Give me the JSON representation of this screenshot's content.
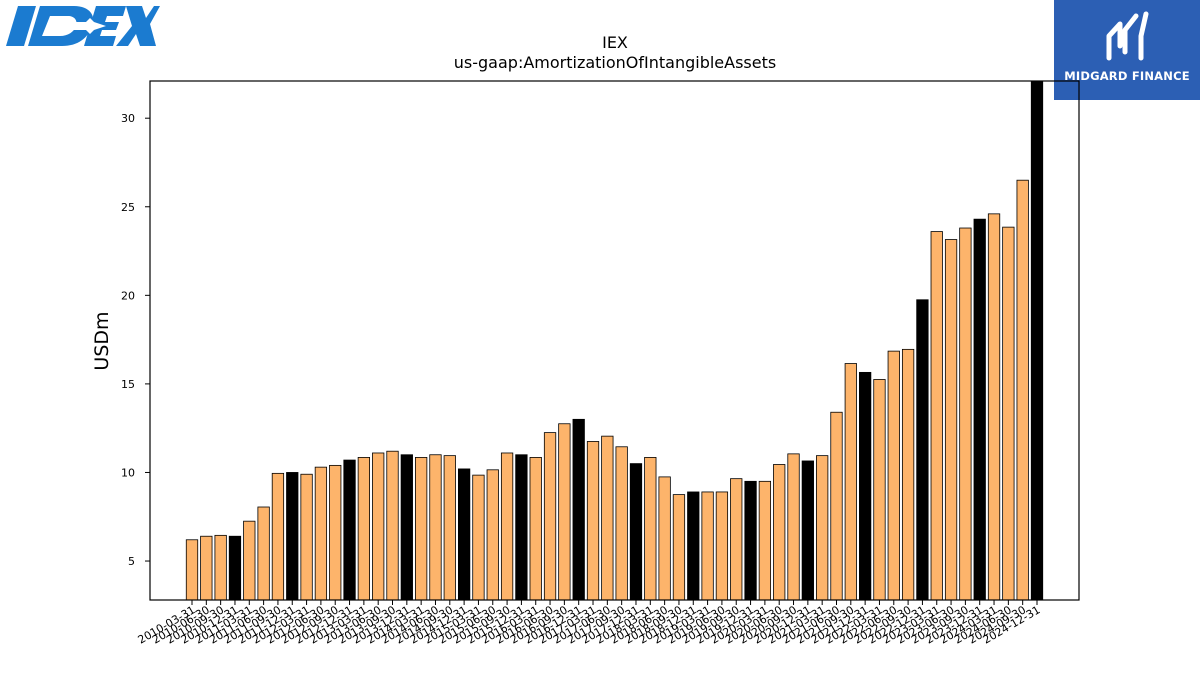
{
  "brand_left": {
    "text": "IDEX",
    "color": "#1b7bd0"
  },
  "brand_right": {
    "text": "MIDGARD FINANCE",
    "bg": "#2c5fb4"
  },
  "colors": {
    "quarter_bar": "#fdb46b",
    "year_end_bar": "#000000"
  },
  "chart_data": {
    "type": "bar",
    "title": "IEX",
    "subtitle": "us-gaap:AmortizationOfIntangibleAssets",
    "xlabel": "",
    "ylabel": "USDm",
    "ylim": [
      2.8,
      32.1
    ],
    "yticks": [
      5,
      10,
      15,
      20,
      25,
      30
    ],
    "categories": [
      "2010-03-31",
      "2010-06-30",
      "2010-09-30",
      "2010-12-31",
      "2011-03-31",
      "2011-06-30",
      "2011-09-30",
      "2011-12-31",
      "2012-03-31",
      "2012-06-30",
      "2012-09-30",
      "2012-12-31",
      "2013-03-31",
      "2013-06-30",
      "2013-09-30",
      "2013-12-31",
      "2014-03-31",
      "2014-06-30",
      "2014-09-30",
      "2014-12-31",
      "2015-03-31",
      "2015-06-30",
      "2015-09-30",
      "2015-12-31",
      "2016-03-31",
      "2016-06-30",
      "2016-09-30",
      "2016-12-31",
      "2017-03-31",
      "2017-06-30",
      "2017-09-30",
      "2017-12-31",
      "2018-03-31",
      "2018-06-30",
      "2018-09-30",
      "2018-12-31",
      "2019-03-31",
      "2019-06-30",
      "2019-09-30",
      "2019-12-31",
      "2020-03-31",
      "2020-06-30",
      "2020-09-30",
      "2020-12-31",
      "2021-03-31",
      "2021-06-30",
      "2021-09-30",
      "2021-12-31",
      "2022-03-31",
      "2022-06-30",
      "2022-09-30",
      "2022-12-31",
      "2023-03-31",
      "2023-06-30",
      "2023-09-30",
      "2023-12-31",
      "2024-03-31",
      "2024-06-30",
      "2024-09-30",
      "2024-12-31"
    ],
    "values": [
      6.2,
      6.4,
      6.45,
      6.4,
      7.25,
      8.05,
      9.95,
      10.0,
      9.9,
      10.3,
      10.4,
      10.7,
      10.85,
      11.1,
      11.2,
      11.0,
      10.85,
      11.0,
      10.95,
      10.2,
      9.85,
      10.15,
      11.1,
      11.0,
      10.85,
      12.25,
      12.75,
      13.0,
      11.75,
      12.05,
      11.45,
      10.5,
      10.85,
      9.75,
      8.75,
      8.9,
      8.9,
      8.9,
      9.65,
      9.5,
      9.5,
      10.45,
      11.05,
      10.65,
      10.95,
      13.4,
      16.15,
      15.65,
      15.25,
      16.85,
      16.95,
      19.75,
      23.6,
      23.15,
      23.8,
      24.3,
      24.6,
      23.85,
      26.5,
      32.1
    ],
    "highlight_year_end": true,
    "grid": false,
    "legend": "none"
  }
}
